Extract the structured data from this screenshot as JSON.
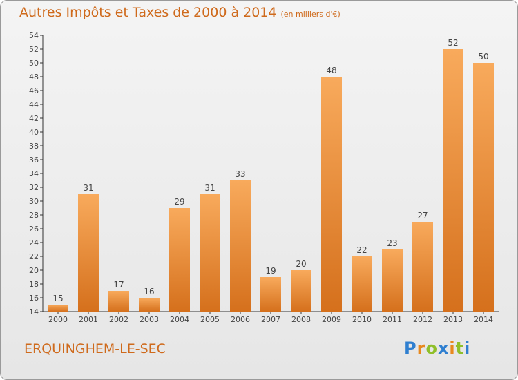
{
  "title": "Autres Impôts et Taxes de 2000 à 2014",
  "unit_note": "(en milliers d'€)",
  "commune": "ERQUINGHEM-LE-SEC",
  "logo": {
    "text": "Proxiti",
    "letters": [
      "P",
      "r",
      "o",
      "x",
      "i",
      "t",
      "i"
    ],
    "colors": [
      "#2f7fd0",
      "#e8891e",
      "#8fbf2a",
      "#2f7fd0",
      "#e8891e",
      "#8fbf2a",
      "#2f7fd0"
    ]
  },
  "colors": {
    "title": "#cf6a1c",
    "bar_light": "#f6a65a",
    "bar_dark": "#d8731f"
  },
  "chart_data": {
    "type": "bar",
    "title": "Autres Impôts et Taxes de 2000 à 2014",
    "categories": [
      "2000",
      "2001",
      "2002",
      "2003",
      "2004",
      "2005",
      "2006",
      "2007",
      "2008",
      "2009",
      "2010",
      "2011",
      "2012",
      "2013",
      "2014"
    ],
    "values": [
      15,
      31,
      17,
      16,
      29,
      31,
      33,
      19,
      20,
      48,
      22,
      23,
      27,
      52,
      50
    ],
    "xlabel": "",
    "ylabel": "",
    "ylim": [
      14,
      54
    ],
    "yticks": [
      14,
      16,
      18,
      20,
      22,
      24,
      26,
      28,
      30,
      32,
      34,
      36,
      38,
      40,
      42,
      44,
      46,
      48,
      50,
      52,
      54
    ],
    "grid": false,
    "legend": "none"
  }
}
